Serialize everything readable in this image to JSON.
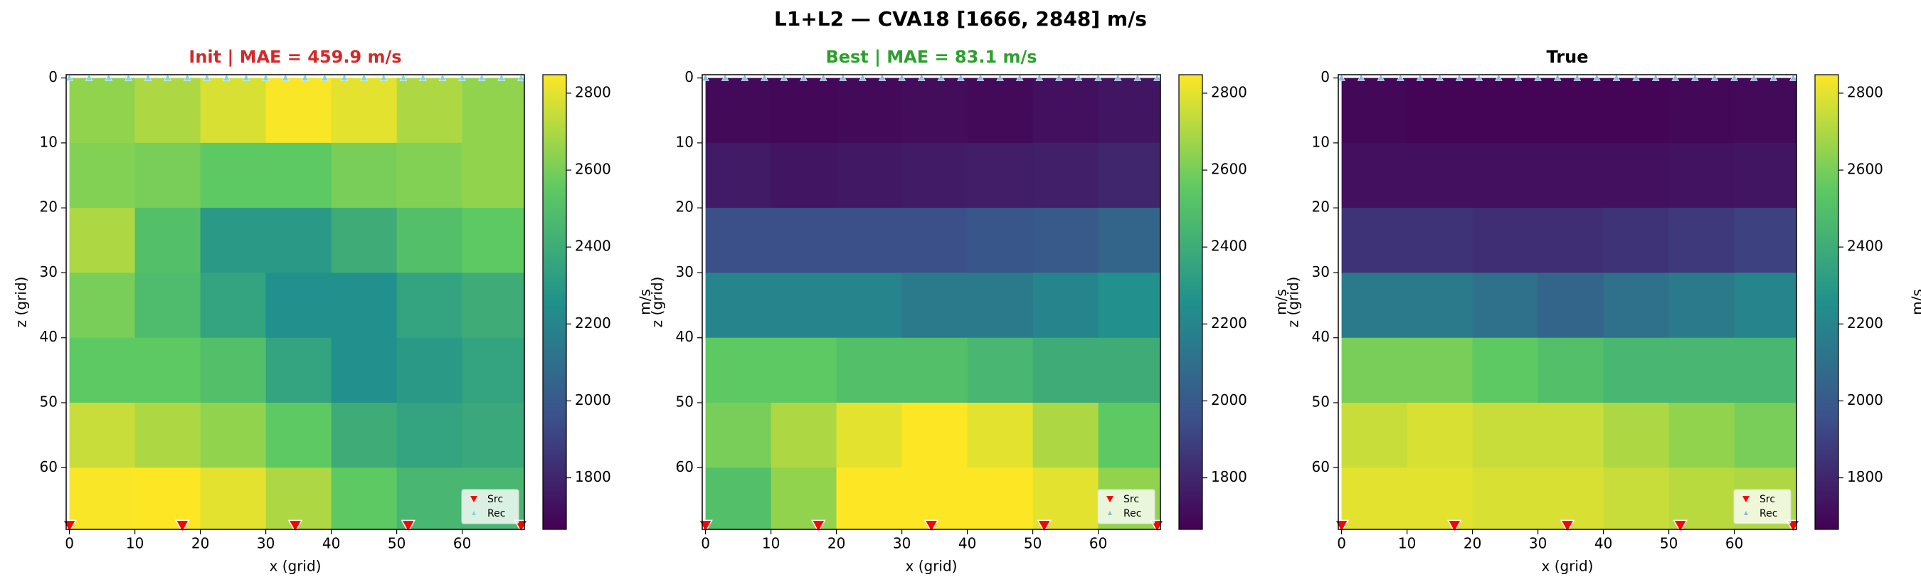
{
  "figure": {
    "title": "L1+L2 — CVA18 [1666, 2848] m/s"
  },
  "chart_data": [
    {
      "type": "heatmap",
      "title": "Init  |  MAE = 459.9 m/s",
      "title_color": "#d62728",
      "xlabel": "x (grid)",
      "ylabel": "z (grid)",
      "x": [
        5,
        15,
        25,
        35,
        45,
        55,
        65
      ],
      "y": [
        5,
        15,
        25,
        35,
        45,
        55,
        65
      ],
      "values": [
        [
          2650,
          2700,
          2780,
          2840,
          2800,
          2700,
          2650
        ],
        [
          2620,
          2600,
          2550,
          2550,
          2600,
          2620,
          2650
        ],
        [
          2700,
          2500,
          2300,
          2300,
          2400,
          2500,
          2550
        ],
        [
          2600,
          2480,
          2350,
          2250,
          2250,
          2350,
          2400
        ],
        [
          2550,
          2550,
          2500,
          2350,
          2250,
          2300,
          2350
        ],
        [
          2750,
          2700,
          2650,
          2550,
          2400,
          2350,
          2380
        ],
        [
          2840,
          2848,
          2800,
          2700,
          2550,
          2450,
          2450
        ]
      ],
      "xlim": [
        -0.5,
        69.5
      ],
      "ylim": [
        69.5,
        -0.5
      ],
      "xticks": [
        0,
        10,
        20,
        30,
        40,
        50,
        60
      ],
      "yticks": [
        0,
        10,
        20,
        30,
        40,
        50,
        60
      ],
      "colorbar": {
        "label": "m/s",
        "lim": [
          1666,
          2848
        ],
        "ticks": [
          1800,
          2000,
          2200,
          2400,
          2600,
          2800
        ],
        "colorscale": [
          "#440154",
          "#3b528b",
          "#21918c",
          "#5ec962",
          "#fde725"
        ]
      },
      "legend": "lower right",
      "sources": {
        "name": "Src",
        "color": "#ff0000",
        "x": [
          0,
          17.25,
          34.5,
          51.75,
          69
        ],
        "y": [
          69,
          69,
          69,
          69,
          69
        ]
      },
      "receivers": {
        "name": "Rec",
        "color": "#7fd7e8",
        "x": [
          0,
          3,
          6,
          9,
          12,
          15,
          18,
          21,
          24,
          27,
          30,
          33,
          36,
          39,
          42,
          45,
          48,
          51,
          54,
          57,
          60,
          63,
          66,
          69
        ],
        "y": [
          0,
          0,
          0,
          0,
          0,
          0,
          0,
          0,
          0,
          0,
          0,
          0,
          0,
          0,
          0,
          0,
          0,
          0,
          0,
          0,
          0,
          0,
          0,
          0
        ]
      }
    },
    {
      "type": "heatmap",
      "title": "Best  |  MAE = 83.1 m/s",
      "title_color": "#2ca02c",
      "xlabel": "x (grid)",
      "ylabel": "z (grid)",
      "x": [
        5,
        15,
        25,
        35,
        45,
        55,
        65
      ],
      "y": [
        5,
        15,
        25,
        35,
        45,
        55,
        65
      ],
      "values": [
        [
          1700,
          1690,
          1700,
          1710,
          1700,
          1720,
          1740
        ],
        [
          1760,
          1740,
          1750,
          1760,
          1770,
          1780,
          1800
        ],
        [
          1950,
          1950,
          1950,
          1950,
          1980,
          2000,
          2050
        ],
        [
          2200,
          2200,
          2200,
          2150,
          2150,
          2200,
          2250
        ],
        [
          2550,
          2550,
          2500,
          2500,
          2450,
          2400,
          2400
        ],
        [
          2600,
          2700,
          2800,
          2848,
          2800,
          2700,
          2550
        ],
        [
          2500,
          2650,
          2848,
          2848,
          2848,
          2800,
          2650
        ]
      ],
      "xlim": [
        -0.5,
        69.5
      ],
      "ylim": [
        69.5,
        -0.5
      ],
      "xticks": [
        0,
        10,
        20,
        30,
        40,
        50,
        60
      ],
      "yticks": [
        0,
        10,
        20,
        30,
        40,
        50,
        60
      ],
      "colorbar": {
        "label": "m/s",
        "lim": [
          1666,
          2848
        ],
        "ticks": [
          1800,
          2000,
          2200,
          2400,
          2600,
          2800
        ],
        "colorscale": [
          "#440154",
          "#3b528b",
          "#21918c",
          "#5ec962",
          "#fde725"
        ]
      },
      "legend": "lower right",
      "sources": {
        "name": "Src",
        "color": "#ff0000",
        "x": [
          0,
          17.25,
          34.5,
          51.75,
          69
        ],
        "y": [
          69,
          69,
          69,
          69,
          69
        ]
      },
      "receivers": {
        "name": "Rec",
        "color": "#8fb8de",
        "x": [
          0,
          3,
          6,
          9,
          12,
          15,
          18,
          21,
          24,
          27,
          30,
          33,
          36,
          39,
          42,
          45,
          48,
          51,
          54,
          57,
          60,
          63,
          66,
          69
        ],
        "y": [
          0,
          0,
          0,
          0,
          0,
          0,
          0,
          0,
          0,
          0,
          0,
          0,
          0,
          0,
          0,
          0,
          0,
          0,
          0,
          0,
          0,
          0,
          0,
          0
        ]
      }
    },
    {
      "type": "heatmap",
      "title": "True",
      "title_color": "#000000",
      "xlabel": "x (grid)",
      "ylabel": "z (grid)",
      "x": [
        5,
        15,
        25,
        35,
        45,
        55,
        65
      ],
      "y": [
        5,
        15,
        25,
        35,
        45,
        55,
        65
      ],
      "values": [
        [
          1690,
          1680,
          1680,
          1680,
          1680,
          1690,
          1700
        ],
        [
          1720,
          1720,
          1720,
          1720,
          1720,
          1730,
          1740
        ],
        [
          1850,
          1850,
          1830,
          1830,
          1850,
          1870,
          1900
        ],
        [
          2150,
          2150,
          2100,
          2050,
          2100,
          2150,
          2200
        ],
        [
          2600,
          2600,
          2550,
          2500,
          2450,
          2450,
          2450
        ],
        [
          2750,
          2780,
          2750,
          2750,
          2700,
          2650,
          2600
        ],
        [
          2800,
          2800,
          2780,
          2780,
          2750,
          2720,
          2700
        ]
      ],
      "xlim": [
        -0.5,
        69.5
      ],
      "ylim": [
        69.5,
        -0.5
      ],
      "xticks": [
        0,
        10,
        20,
        30,
        40,
        50,
        60
      ],
      "yticks": [
        0,
        10,
        20,
        30,
        40,
        50,
        60
      ],
      "colorbar": {
        "label": "m/s",
        "lim": [
          1666,
          2848
        ],
        "ticks": [
          1800,
          2000,
          2200,
          2400,
          2600,
          2800
        ],
        "colorscale": [
          "#440154",
          "#3b528b",
          "#21918c",
          "#5ec962",
          "#fde725"
        ]
      },
      "legend": "lower right",
      "sources": {
        "name": "Src",
        "color": "#ff0000",
        "x": [
          0,
          17.25,
          34.5,
          51.75,
          69
        ],
        "y": [
          69,
          69,
          69,
          69,
          69
        ]
      },
      "receivers": {
        "name": "Rec",
        "color": "#8fb8de",
        "x": [
          0,
          3,
          6,
          9,
          12,
          15,
          18,
          21,
          24,
          27,
          30,
          33,
          36,
          39,
          42,
          45,
          48,
          51,
          54,
          57,
          60,
          63,
          66,
          69
        ],
        "y": [
          0,
          0,
          0,
          0,
          0,
          0,
          0,
          0,
          0,
          0,
          0,
          0,
          0,
          0,
          0,
          0,
          0,
          0,
          0,
          0,
          0,
          0,
          0,
          0
        ]
      }
    }
  ]
}
